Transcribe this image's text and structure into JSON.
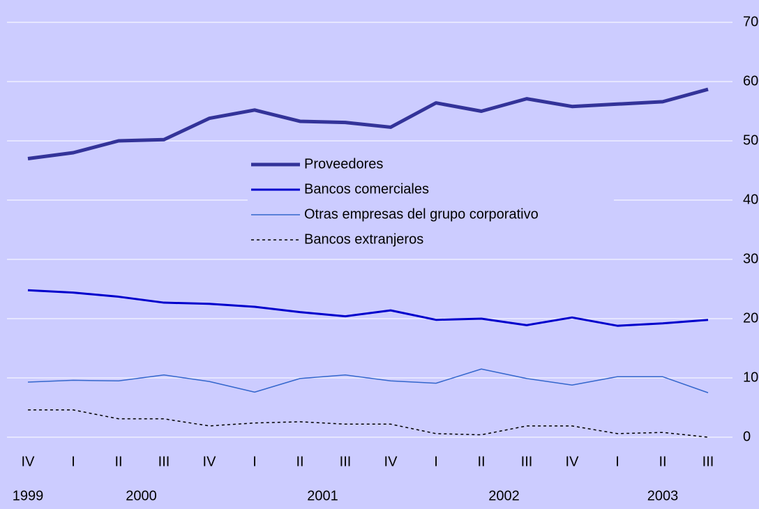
{
  "chart_data": {
    "type": "line",
    "categories": [
      "IV",
      "I",
      "II",
      "III",
      "IV",
      "I",
      "II",
      "III",
      "IV",
      "I",
      "II",
      "III",
      "IV",
      "I",
      "II",
      "III"
    ],
    "x_groups": [
      {
        "label": "1999",
        "span": 1
      },
      {
        "label": "2000",
        "span": 4
      },
      {
        "label": "2001",
        "span": 4
      },
      {
        "label": "2002",
        "span": 4
      },
      {
        "label": "2003",
        "span": 3
      }
    ],
    "series": [
      {
        "name": "Proveedores",
        "color": "#333399",
        "values": [
          47,
          48,
          50,
          50.2,
          53.8,
          55.2,
          53.3,
          53.1,
          52.3,
          56.4,
          55,
          57.1,
          55.8,
          56.2,
          56.6,
          58.7
        ]
      },
      {
        "name": "Bancos comerciales",
        "color": "#0000cc",
        "values": [
          24.8,
          24.4,
          23.7,
          22.7,
          22.5,
          22,
          21.1,
          20.4,
          21.4,
          19.8,
          20,
          18.9,
          20.2,
          18.8,
          19.2,
          19.8
        ]
      },
      {
        "name": "Otras empresas del grupo corporativo",
        "color": "#3366cc",
        "values": [
          9.3,
          9.6,
          9.5,
          10.5,
          9.4,
          7.6,
          9.9,
          10.5,
          9.5,
          9.1,
          11.5,
          9.9,
          8.8,
          10.2,
          10.2,
          7.5
        ]
      },
      {
        "name": "Bancos extranjeros",
        "color": "#000000",
        "values": [
          4.6,
          4.6,
          3.1,
          3.1,
          1.9,
          2.4,
          2.6,
          2.2,
          2.2,
          0.6,
          0.4,
          1.9,
          1.9,
          0.6,
          0.8,
          0
        ]
      }
    ],
    "ylim": [
      0,
      70
    ],
    "yticks": [
      0,
      10,
      20,
      30,
      40,
      50,
      60,
      70
    ],
    "grid": true,
    "y_axis_side": "right"
  }
}
